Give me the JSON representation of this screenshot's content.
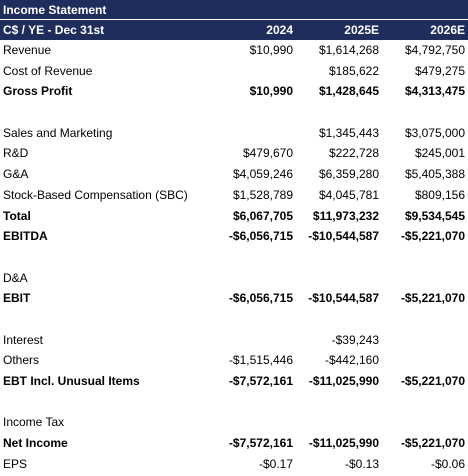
{
  "colors": {
    "header_bg": "#1f2d5c",
    "header_text": "#ffffff"
  },
  "title": "Income Statement",
  "header": {
    "label": "C$ / YE - Dec 31st",
    "years": [
      "2024",
      "2025E",
      "2026E"
    ]
  },
  "rows": {
    "revenue": {
      "label": "Revenue",
      "v2024": "$10,990",
      "v2025": "$1,614,268",
      "v2026": "$4,792,750"
    },
    "cost_of_revenue": {
      "label": "Cost of Revenue",
      "v2024": "",
      "v2025": "$185,622",
      "v2026": "$479,275"
    },
    "gross_profit": {
      "label": "Gross Profit",
      "v2024": "$10,990",
      "v2025": "$1,428,645",
      "v2026": "$4,313,475"
    },
    "sales_marketing": {
      "label": "Sales and Marketing",
      "v2024": "",
      "v2025": "$1,345,443",
      "v2026": "$3,075,000"
    },
    "rnd": {
      "label": "R&D",
      "v2024": "$479,670",
      "v2025": "$222,728",
      "v2026": "$245,001"
    },
    "gna": {
      "label": "G&A",
      "v2024": "$4,059,246",
      "v2025": "$6,359,280",
      "v2026": "$5,405,388"
    },
    "sbc": {
      "label": "Stock-Based Compensation (SBC)",
      "v2024": "$1,528,789",
      "v2025": "$4,045,781",
      "v2026": "$809,156"
    },
    "total": {
      "label": "Total",
      "v2024": "$6,067,705",
      "v2025": "$11,973,232",
      "v2026": "$9,534,545"
    },
    "ebitda": {
      "label": "EBITDA",
      "v2024": "-$6,056,715",
      "v2025": "-$10,544,587",
      "v2026": "-$5,221,070"
    },
    "dna": {
      "label": "D&A",
      "v2024": "",
      "v2025": "",
      "v2026": ""
    },
    "ebit": {
      "label": "EBIT",
      "v2024": "-$6,056,715",
      "v2025": "-$10,544,587",
      "v2026": "-$5,221,070"
    },
    "interest": {
      "label": "Interest",
      "v2024": "",
      "v2025": "-$39,243",
      "v2026": ""
    },
    "others": {
      "label": "Others",
      "v2024": "-$1,515,446",
      "v2025": "-$442,160",
      "v2026": ""
    },
    "ebt": {
      "label": "EBT Incl. Unusual Items",
      "v2024": "-$7,572,161",
      "v2025": "-$11,025,990",
      "v2026": "-$5,221,070"
    },
    "income_tax": {
      "label": "Income Tax",
      "v2024": "",
      "v2025": "",
      "v2026": ""
    },
    "net_income": {
      "label": "Net Income",
      "v2024": "-$7,572,161",
      "v2025": "-$11,025,990",
      "v2026": "-$5,221,070"
    },
    "eps": {
      "label": "EPS",
      "v2024": "-$0.17",
      "v2025": "-$0.13",
      "v2026": "-$0.06"
    }
  }
}
